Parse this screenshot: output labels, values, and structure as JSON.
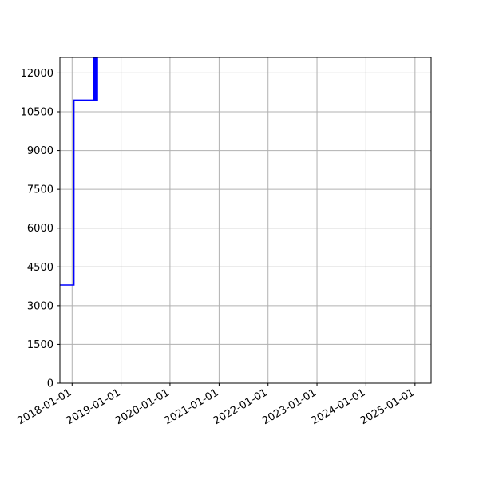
{
  "chart_data": {
    "type": "line",
    "title": "",
    "xlabel": "",
    "ylabel": "",
    "grid": true,
    "colors": {
      "line": "#0000ff",
      "grid": "#b0b0b0",
      "axis": "#000000"
    },
    "xlim": [
      "2017-10-02",
      "2025-05-01"
    ],
    "ylim": [
      0,
      12600
    ],
    "x_ticks": [
      "2018-01-01",
      "2019-01-01",
      "2020-01-01",
      "2021-01-01",
      "2022-01-01",
      "2023-01-01",
      "2024-01-01",
      "2025-01-01"
    ],
    "y_ticks": [
      0,
      1500,
      3000,
      4500,
      6000,
      7500,
      9000,
      10500,
      12000
    ],
    "series": [
      {
        "color": "#0000ff",
        "points": [
          {
            "x": "2017-10-02",
            "y": 3800
          },
          {
            "x": "2018-01-15",
            "y": 3800
          },
          {
            "x": "2018-01-15",
            "y": 10950
          },
          {
            "x": "2018-06-10",
            "y": 10950
          },
          {
            "x": "2018-06-10",
            "y": 12600
          },
          {
            "x": "2018-06-14",
            "y": 12600
          },
          {
            "x": "2018-06-14",
            "y": 10950
          },
          {
            "x": "2018-06-18",
            "y": 10950
          },
          {
            "x": "2018-06-18",
            "y": 12600
          },
          {
            "x": "2018-06-22",
            "y": 12600
          },
          {
            "x": "2018-06-22",
            "y": 10950
          },
          {
            "x": "2018-06-25",
            "y": 10950
          },
          {
            "x": "2018-06-25",
            "y": 12600
          },
          {
            "x": "2018-06-29",
            "y": 12600
          },
          {
            "x": "2018-06-29",
            "y": 10950
          },
          {
            "x": "2018-07-02",
            "y": 10950
          },
          {
            "x": "2018-07-02",
            "y": 12600
          },
          {
            "x": "2018-07-06",
            "y": 12600
          },
          {
            "x": "2018-07-06",
            "y": 10950
          },
          {
            "x": "2018-07-09",
            "y": 10950
          },
          {
            "x": "2018-07-09",
            "y": 12600
          }
        ]
      }
    ]
  }
}
